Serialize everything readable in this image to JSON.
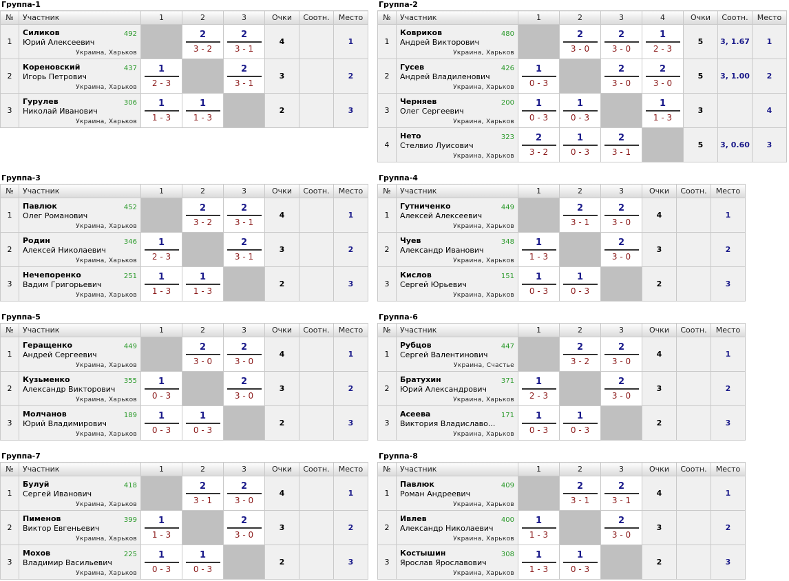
{
  "labels": {
    "no": "№",
    "player": "Участник",
    "points": "Очки",
    "ratio": "Соотн.",
    "place": "Место"
  },
  "groups": [
    {
      "title": "Группа-1",
      "players": [
        {
          "surname": "Силиков",
          "name": "Юрий Алексеевич",
          "rating": "492",
          "city": "Украина, Харьков",
          "points": "4",
          "ratio": "",
          "place": "1"
        },
        {
          "surname": "Кореновский",
          "name": "Игорь Петрович",
          "rating": "437",
          "city": "Украина, Харьков",
          "points": "3",
          "ratio": "",
          "place": "2"
        },
        {
          "surname": "Гурулев",
          "name": "Николай Иванович",
          "rating": "306",
          "city": "Украина, Харьков",
          "points": "2",
          "ratio": "",
          "place": "3"
        }
      ],
      "results": [
        [
          null,
          {
            "p": "2",
            "s": "3 - 2"
          },
          {
            "p": "2",
            "s": "3 - 1"
          }
        ],
        [
          {
            "p": "1",
            "s": "2 - 3"
          },
          null,
          {
            "p": "2",
            "s": "3 - 1"
          }
        ],
        [
          {
            "p": "1",
            "s": "1 - 3"
          },
          {
            "p": "1",
            "s": "1 - 3"
          },
          null
        ]
      ]
    },
    {
      "title": "Группа-2",
      "players": [
        {
          "surname": "Ковриков",
          "name": "Андрей Викторович",
          "rating": "480",
          "city": "Украина, Харьков",
          "points": "5",
          "ratio": "3, 1.67",
          "place": "1"
        },
        {
          "surname": "Гусев",
          "name": "Андрей Владиленович",
          "rating": "426",
          "city": "Украина, Харьков",
          "points": "5",
          "ratio": "3, 1.00",
          "place": "2"
        },
        {
          "surname": "Черняев",
          "name": "Олег Сергеевич",
          "rating": "200",
          "city": "Украина, Харьков",
          "points": "3",
          "ratio": "",
          "place": "4"
        },
        {
          "surname": "Нето",
          "name": "Стелвио Луисович",
          "rating": "323",
          "city": "Украина, Харьков",
          "points": "5",
          "ratio": "3, 0.60",
          "place": "3"
        }
      ],
      "results": [
        [
          null,
          {
            "p": "2",
            "s": "3 - 0"
          },
          {
            "p": "2",
            "s": "3 - 0"
          },
          {
            "p": "1",
            "s": "2 - 3"
          }
        ],
        [
          {
            "p": "1",
            "s": "0 - 3"
          },
          null,
          {
            "p": "2",
            "s": "3 - 0"
          },
          {
            "p": "2",
            "s": "3 - 0"
          }
        ],
        [
          {
            "p": "1",
            "s": "0 - 3"
          },
          {
            "p": "1",
            "s": "0 - 3"
          },
          null,
          {
            "p": "1",
            "s": "1 - 3"
          }
        ],
        [
          {
            "p": "2",
            "s": "3 - 2"
          },
          {
            "p": "1",
            "s": "0 - 3"
          },
          {
            "p": "2",
            "s": "3 - 1"
          },
          null
        ]
      ]
    },
    {
      "title": "Группа-3",
      "players": [
        {
          "surname": "Павлюк",
          "name": "Олег Романович",
          "rating": "452",
          "city": "Украина, Харьков",
          "points": "4",
          "ratio": "",
          "place": "1"
        },
        {
          "surname": "Родин",
          "name": "Алексей Николаевич",
          "rating": "346",
          "city": "Украина, Харьков",
          "points": "3",
          "ratio": "",
          "place": "2"
        },
        {
          "surname": "Нечепоренко",
          "name": "Вадим Григорьевич",
          "rating": "251",
          "city": "Украина, Харьков",
          "points": "2",
          "ratio": "",
          "place": "3"
        }
      ],
      "results": [
        [
          null,
          {
            "p": "2",
            "s": "3 - 2"
          },
          {
            "p": "2",
            "s": "3 - 1"
          }
        ],
        [
          {
            "p": "1",
            "s": "2 - 3"
          },
          null,
          {
            "p": "2",
            "s": "3 - 1"
          }
        ],
        [
          {
            "p": "1",
            "s": "1 - 3"
          },
          {
            "p": "1",
            "s": "1 - 3"
          },
          null
        ]
      ]
    },
    {
      "title": "Группа-4",
      "players": [
        {
          "surname": "Гутниченко",
          "name": "Алексей Алексеевич",
          "rating": "449",
          "city": "Украина, Харьков",
          "points": "4",
          "ratio": "",
          "place": "1"
        },
        {
          "surname": "Чуев",
          "name": "Александр Иванович",
          "rating": "348",
          "city": "Украина, Харьков",
          "points": "3",
          "ratio": "",
          "place": "2"
        },
        {
          "surname": "Кислов",
          "name": "Сергей Юрьевич",
          "rating": "151",
          "city": "Украина, Харьков",
          "points": "2",
          "ratio": "",
          "place": "3"
        }
      ],
      "results": [
        [
          null,
          {
            "p": "2",
            "s": "3 - 1"
          },
          {
            "p": "2",
            "s": "3 - 0"
          }
        ],
        [
          {
            "p": "1",
            "s": "1 - 3"
          },
          null,
          {
            "p": "2",
            "s": "3 - 0"
          }
        ],
        [
          {
            "p": "1",
            "s": "0 - 3"
          },
          {
            "p": "1",
            "s": "0 - 3"
          },
          null
        ]
      ]
    },
    {
      "title": "Группа-5",
      "players": [
        {
          "surname": "Геращенко",
          "name": "Андрей Сергеевич",
          "rating": "449",
          "city": "Украина, Харьков",
          "points": "4",
          "ratio": "",
          "place": "1"
        },
        {
          "surname": "Кузьменко",
          "name": "Александр Викторович",
          "rating": "355",
          "city": "Украина, Харьков",
          "points": "3",
          "ratio": "",
          "place": "2"
        },
        {
          "surname": "Молчанов",
          "name": "Юрий Владимирович",
          "rating": "189",
          "city": "Украина, Харьков",
          "points": "2",
          "ratio": "",
          "place": "3"
        }
      ],
      "results": [
        [
          null,
          {
            "p": "2",
            "s": "3 - 0"
          },
          {
            "p": "2",
            "s": "3 - 0"
          }
        ],
        [
          {
            "p": "1",
            "s": "0 - 3"
          },
          null,
          {
            "p": "2",
            "s": "3 - 0"
          }
        ],
        [
          {
            "p": "1",
            "s": "0 - 3"
          },
          {
            "p": "1",
            "s": "0 - 3"
          },
          null
        ]
      ]
    },
    {
      "title": "Группа-6",
      "players": [
        {
          "surname": "Рубцов",
          "name": "Сергей Валентинович",
          "rating": "447",
          "city": "Украина, Счастье",
          "points": "4",
          "ratio": "",
          "place": "1"
        },
        {
          "surname": "Братухин",
          "name": "Юрий Александрович",
          "rating": "371",
          "city": "Украина, Харьков",
          "points": "3",
          "ratio": "",
          "place": "2"
        },
        {
          "surname": "Асеева",
          "name": "Виктория Владиславо...",
          "rating": "171",
          "city": "Украина, Харьков",
          "points": "2",
          "ratio": "",
          "place": "3"
        }
      ],
      "results": [
        [
          null,
          {
            "p": "2",
            "s": "3 - 2"
          },
          {
            "p": "2",
            "s": "3 - 0"
          }
        ],
        [
          {
            "p": "1",
            "s": "2 - 3"
          },
          null,
          {
            "p": "2",
            "s": "3 - 0"
          }
        ],
        [
          {
            "p": "1",
            "s": "0 - 3"
          },
          {
            "p": "1",
            "s": "0 - 3"
          },
          null
        ]
      ]
    },
    {
      "title": "Группа-7",
      "players": [
        {
          "surname": "Булуй",
          "name": "Сергей Иванович",
          "rating": "418",
          "city": "Украина, Харьков",
          "points": "4",
          "ratio": "",
          "place": "1"
        },
        {
          "surname": "Пименов",
          "name": "Виктор Евгеньевич",
          "rating": "399",
          "city": "Украина, Харьков",
          "points": "3",
          "ratio": "",
          "place": "2"
        },
        {
          "surname": "Мохов",
          "name": "Владимир Васильевич",
          "rating": "225",
          "city": "Украина, Харьков",
          "points": "2",
          "ratio": "",
          "place": "3"
        }
      ],
      "results": [
        [
          null,
          {
            "p": "2",
            "s": "3 - 1"
          },
          {
            "p": "2",
            "s": "3 - 0"
          }
        ],
        [
          {
            "p": "1",
            "s": "1 - 3"
          },
          null,
          {
            "p": "2",
            "s": "3 - 0"
          }
        ],
        [
          {
            "p": "1",
            "s": "0 - 3"
          },
          {
            "p": "1",
            "s": "0 - 3"
          },
          null
        ]
      ]
    },
    {
      "title": "Группа-8",
      "players": [
        {
          "surname": "Павлюк",
          "name": "Роман Андреевич",
          "rating": "409",
          "city": "Украина, Харьков",
          "points": "4",
          "ratio": "",
          "place": "1"
        },
        {
          "surname": "Ивлев",
          "name": "Александр Николаевич",
          "rating": "400",
          "city": "Украина, Харьков",
          "points": "3",
          "ratio": "",
          "place": "2"
        },
        {
          "surname": "Костышин",
          "name": "Ярослав Ярославович",
          "rating": "308",
          "city": "Украина, Харьков",
          "points": "2",
          "ratio": "",
          "place": "3"
        }
      ],
      "results": [
        [
          null,
          {
            "p": "2",
            "s": "3 - 1"
          },
          {
            "p": "2",
            "s": "3 - 1"
          }
        ],
        [
          {
            "p": "1",
            "s": "1 - 3"
          },
          null,
          {
            "p": "2",
            "s": "3 - 0"
          }
        ],
        [
          {
            "p": "1",
            "s": "1 - 3"
          },
          {
            "p": "1",
            "s": "0 - 3"
          },
          null
        ]
      ]
    }
  ]
}
